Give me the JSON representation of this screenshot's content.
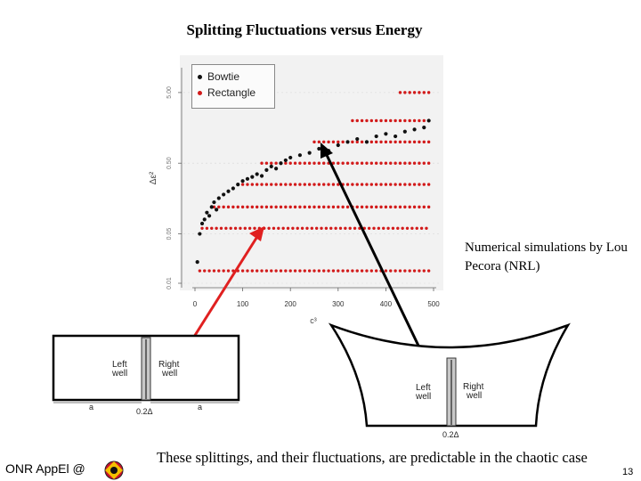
{
  "slide": {
    "title": "Splitting Fluctuations versus Energy",
    "sim_note": "Numerical simulations by Lou Pecora (NRL)",
    "caption": "These splittings, and their fluctuations, are predictable in the chaotic case",
    "footer_left": "ONR AppEl @",
    "page_number": "13"
  },
  "diagrams": {
    "rect": {
      "left_label_1": "Left",
      "left_label_2": "well",
      "right_label_1": "Right",
      "right_label_2": "well",
      "a_left": "a",
      "a_right": "a",
      "gap_label": "0.2Δ"
    },
    "bowtie": {
      "left_label_1": "Left",
      "left_label_2": "well",
      "right_label_1": "Right",
      "right_label_2": "well",
      "gap_label": "0.2Δ"
    }
  },
  "colors": {
    "bowtie": "#111111",
    "rectangle": "#d21a1a",
    "arrow_red": "#e02020",
    "arrow_black": "#000000"
  },
  "chart_data": {
    "type": "scatter",
    "title": "",
    "xlabel": "c³",
    "ylabel": "Δε²",
    "xlim": [
      0,
      500
    ],
    "ylim_log": [
      0.01,
      10
    ],
    "y_scale": "log",
    "x_ticks": [
      0,
      100,
      200,
      300,
      400,
      500
    ],
    "y_ticks": [
      0.01,
      0.05,
      0.5,
      5.0
    ],
    "y_tick_labels": [
      "0.01",
      "0.05",
      "0.50",
      "5.00"
    ],
    "legend": [
      "Bowtie",
      "Rectangle"
    ],
    "legend_position": "top-left",
    "series": [
      {
        "name": "Bowtie",
        "trend": "Δε² rises with c³, roughly 0.02 at c³≈5 to about 2 at c³≈490, with scatter",
        "x": [
          5,
          10,
          15,
          20,
          25,
          30,
          35,
          40,
          45,
          50,
          60,
          70,
          80,
          90,
          100,
          110,
          120,
          130,
          140,
          150,
          160,
          170,
          180,
          190,
          200,
          220,
          240,
          260,
          280,
          300,
          320,
          340,
          360,
          380,
          400,
          420,
          440,
          460,
          480,
          490
        ],
        "y": [
          0.02,
          0.05,
          0.07,
          0.08,
          0.1,
          0.09,
          0.12,
          0.14,
          0.11,
          0.16,
          0.18,
          0.2,
          0.22,
          0.25,
          0.28,
          0.3,
          0.32,
          0.35,
          0.33,
          0.4,
          0.45,
          0.42,
          0.5,
          0.55,
          0.6,
          0.65,
          0.7,
          0.8,
          0.75,
          0.9,
          1.0,
          1.1,
          1.0,
          1.2,
          1.3,
          1.2,
          1.4,
          1.5,
          1.6,
          2.0
        ]
      },
      {
        "name": "Rectangle",
        "trend": "points fall on discrete horizontal levels; higher levels appear at larger c³",
        "levels": [
          {
            "y": 0.015,
            "x_from": 10,
            "x_to": 490
          },
          {
            "y": 0.06,
            "x_from": 15,
            "x_to": 490
          },
          {
            "y": 0.12,
            "x_from": 40,
            "x_to": 490
          },
          {
            "y": 0.25,
            "x_from": 90,
            "x_to": 490
          },
          {
            "y": 0.5,
            "x_from": 140,
            "x_to": 490
          },
          {
            "y": 1.0,
            "x_from": 250,
            "x_to": 490
          },
          {
            "y": 2.0,
            "x_from": 330,
            "x_to": 490
          },
          {
            "y": 5.0,
            "x_from": 430,
            "x_to": 490
          }
        ]
      }
    ]
  }
}
